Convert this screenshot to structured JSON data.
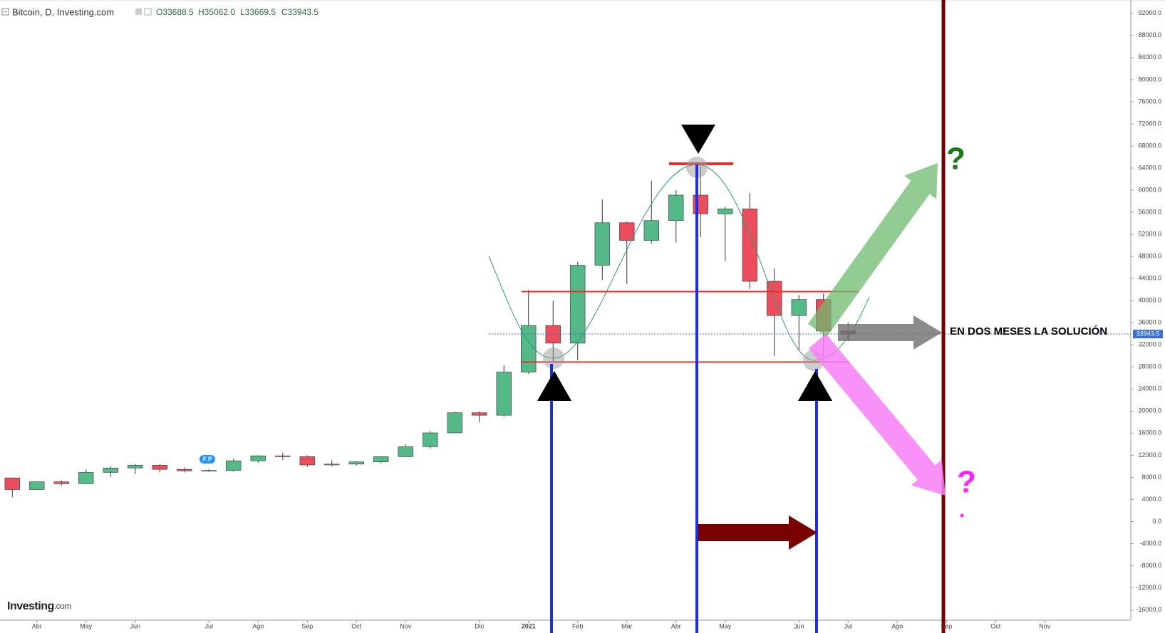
{
  "header": {
    "symbol": "Bitcoin, D, Investing.com",
    "open": "O33688.5",
    "high": "H35062.0",
    "low": "L33669.5",
    "close": "C33943.5"
  },
  "annotations": {
    "note": "EN DOS MESES LA SOLUCIÓN",
    "question_up": "?",
    "question_down": "?",
    "badge": "F P",
    "brand": "Investing",
    "brand_suffix": ".com"
  },
  "chart_data": {
    "type": "candlestick",
    "categories": [
      null,
      "Abr",
      null,
      "May",
      null,
      "Jun",
      null,
      null,
      "Jul",
      null,
      "Ago",
      null,
      "Sep",
      null,
      "Oct",
      null,
      "Nov",
      null,
      null,
      "Dic",
      null,
      "2021",
      null,
      "Feb",
      null,
      "Mar",
      null,
      "Abr",
      null,
      "May",
      null,
      null,
      "Jun",
      null,
      "Jul",
      null,
      "Ago",
      null,
      "Sep",
      null,
      "Oct",
      null,
      "Nov",
      null,
      null,
      null
    ],
    "open": [
      7900,
      5800,
      7200,
      6850,
      8900,
      9700,
      10200,
      9450,
      9180,
      9250,
      11000,
      11900,
      11750,
      10250,
      10400,
      10800,
      11750,
      13550,
      16050,
      19700,
      19250,
      27050,
      35500,
      32300,
      46400,
      54100,
      50900,
      54500,
      59100,
      55700,
      56600,
      43500,
      37300,
      40200,
      34500,
      null,
      null,
      null,
      null,
      null,
      null,
      null,
      null,
      null,
      null,
      null
    ],
    "high": [
      7900,
      7300,
      7450,
      9450,
      10000,
      10400,
      10400,
      9800,
      9450,
      11400,
      12000,
      12450,
      12000,
      11100,
      10950,
      11800,
      14000,
      16400,
      19850,
      19950,
      28300,
      41900,
      40000,
      47000,
      58300,
      54300,
      61700,
      60000,
      64800,
      57000,
      59500,
      45800,
      41000,
      41300,
      36000,
      null,
      null,
      null,
      null,
      null,
      null,
      null,
      null,
      null,
      null,
      null
    ],
    "low": [
      4400,
      5800,
      6500,
      6800,
      8100,
      8600,
      8900,
      8900,
      9000,
      9050,
      10600,
      11200,
      9900,
      10000,
      10200,
      10550,
      11700,
      13200,
      16000,
      18000,
      19000,
      26700,
      28800,
      29200,
      43700,
      43000,
      50300,
      50500,
      51500,
      47100,
      42100,
      30000,
      31100,
      28800,
      32700,
      null,
      null,
      null,
      null,
      null,
      null,
      null,
      null,
      null,
      null,
      null
    ],
    "close": [
      5800,
      7200,
      6850,
      8900,
      9700,
      10200,
      9450,
      9180,
      9250,
      11000,
      11900,
      11750,
      10250,
      10400,
      10800,
      11750,
      13550,
      16050,
      19700,
      19250,
      27050,
      35500,
      32300,
      46400,
      54100,
      50900,
      54500,
      59100,
      55700,
      56600,
      43500,
      37300,
      40200,
      34500,
      33943.5,
      null,
      null,
      null,
      null,
      null,
      null,
      null,
      null,
      null,
      null,
      null
    ],
    "up_color": "#53b987",
    "down_color": "#eb4d5c",
    "ylim": [
      -17856,
      94423
    ],
    "yticks": [
      {
        "value": 92000,
        "label": "92000.0"
      },
      {
        "value": 88000,
        "label": "88000.0"
      },
      {
        "value": 84000,
        "label": "84000.0"
      },
      {
        "value": 80000,
        "label": "80000.0"
      },
      {
        "value": 76000,
        "label": "76000.0"
      },
      {
        "value": 72000,
        "label": "72000.0"
      },
      {
        "value": 68000,
        "label": "68000.0"
      },
      {
        "value": 64000,
        "label": "64000.0"
      },
      {
        "value": 60000,
        "label": "60000.0"
      },
      {
        "value": 56000,
        "label": "56000.0"
      },
      {
        "value": 52000,
        "label": "52000.0"
      },
      {
        "value": 48000,
        "label": "48000.0"
      },
      {
        "value": 44000,
        "label": "44000.0"
      },
      {
        "value": 40000,
        "label": "40000.0"
      },
      {
        "value": 36000,
        "label": "36000.0"
      },
      {
        "value": 32000,
        "label": "32000.0"
      },
      {
        "value": 28000,
        "label": "28000.0"
      },
      {
        "value": 24000,
        "label": "24000.0"
      },
      {
        "value": 20000,
        "label": "20000.0"
      },
      {
        "value": 16000,
        "label": "16000.0"
      },
      {
        "value": 12000,
        "label": "12000.0"
      },
      {
        "value": 8000,
        "label": "8000.0"
      },
      {
        "value": 4000,
        "label": "4000.0"
      },
      {
        "value": 0,
        "label": "0.0"
      },
      {
        "value": -4000,
        "label": "-4000.0"
      },
      {
        "value": -8000,
        "label": "-8000.0"
      },
      {
        "value": -12000,
        "label": "-12000.0"
      },
      {
        "value": -16000,
        "label": "-16000.0"
      }
    ],
    "grid": false
  }
}
